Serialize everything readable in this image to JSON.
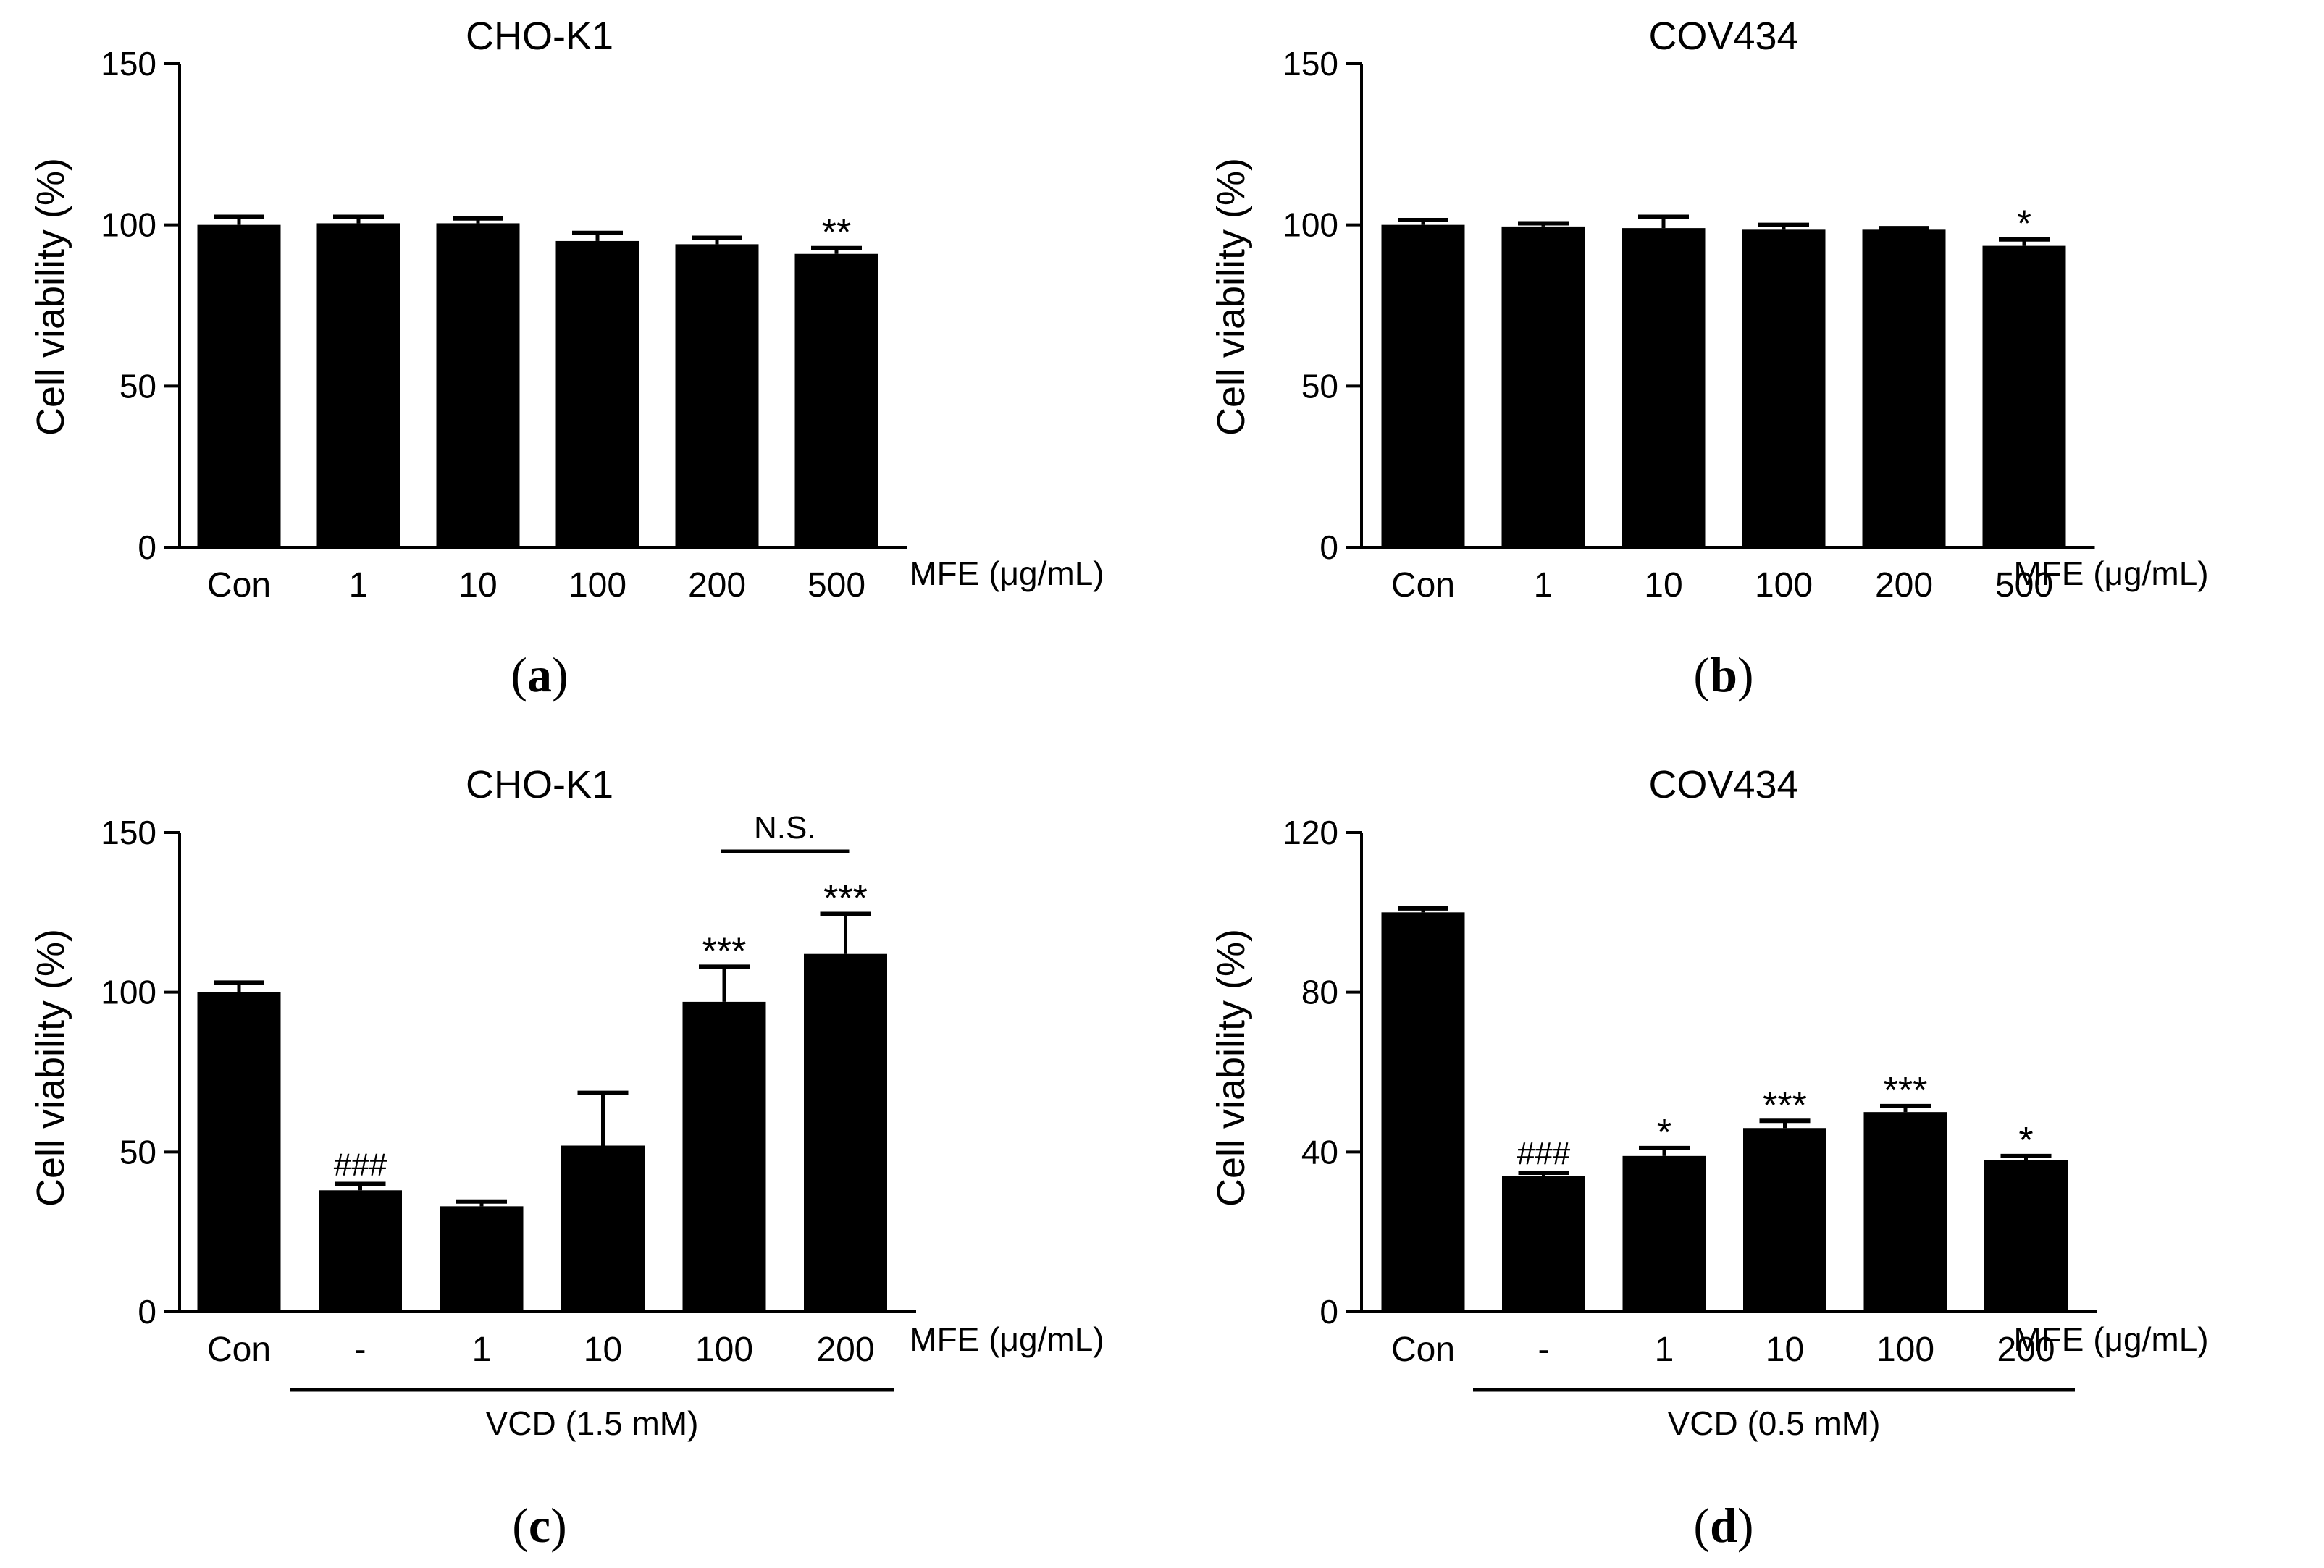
{
  "figure": {
    "panels": [
      {
        "id": "a",
        "caption": "(a)"
      },
      {
        "id": "b",
        "caption": "(b)"
      },
      {
        "id": "c",
        "caption": "(c)"
      },
      {
        "id": "d",
        "caption": "(d)"
      }
    ]
  },
  "chart_data": [
    {
      "id": "a",
      "type": "bar",
      "title": "CHO-K1",
      "ylabel": "Cell viability (%)",
      "xlabel": "MFE (μg/mL)",
      "caption": "(a)",
      "ylim": [
        0,
        150
      ],
      "yticks": [
        0,
        50,
        100,
        150
      ],
      "categories": [
        "Con",
        "1",
        "10",
        "100",
        "200",
        "500"
      ],
      "values": [
        100,
        100.5,
        100.5,
        95,
        94,
        91
      ],
      "errors": [
        2.5,
        2,
        1.5,
        2.5,
        2,
        1.8
      ],
      "annotations": [
        "",
        "",
        "",
        "",
        "",
        "**"
      ]
    },
    {
      "id": "b",
      "type": "bar",
      "title": "COV434",
      "ylabel": "Cell viability (%)",
      "xlabel": "MFE (μg/mL)",
      "caption": "(b)",
      "ylim": [
        0,
        150
      ],
      "yticks": [
        0,
        50,
        100,
        150
      ],
      "categories": [
        "Con",
        "1",
        "10",
        "100",
        "200",
        "500"
      ],
      "values": [
        100,
        99.5,
        99,
        98.5,
        98.5,
        93.5
      ],
      "errors": [
        1.5,
        1,
        3.5,
        1.5,
        0.5,
        2
      ],
      "annotations": [
        "",
        "",
        "",
        "",
        "",
        "*"
      ]
    },
    {
      "id": "c",
      "type": "bar",
      "title": "CHO-K1",
      "ylabel": "Cell viability (%)",
      "xlabel": "MFE (μg/mL)",
      "caption": "(c)",
      "ylim": [
        0,
        150
      ],
      "yticks": [
        0,
        50,
        100,
        150
      ],
      "categories": [
        "Con",
        "-",
        "1",
        "10",
        "100",
        "200"
      ],
      "values": [
        100,
        38,
        33,
        52,
        97,
        112
      ],
      "errors": [
        3,
        2,
        1.5,
        16.5,
        11,
        12.5
      ],
      "annotations": [
        "",
        "###",
        "",
        "",
        "***",
        "***"
      ],
      "group_label": "VCD (1.5 mM)",
      "group_range": [
        1,
        5
      ],
      "comparison": {
        "label": "N.S.",
        "from": 4,
        "to": 5
      }
    },
    {
      "id": "d",
      "type": "bar",
      "title": "COV434",
      "ylabel": "Cell viability (%)",
      "xlabel": "MFE (μg/mL)",
      "caption": "(d)",
      "ylim": [
        0,
        120
      ],
      "yticks": [
        0,
        40,
        80,
        120
      ],
      "categories": [
        "Con",
        "-",
        "1",
        "10",
        "100",
        "200"
      ],
      "values": [
        100,
        34,
        39,
        46,
        50,
        38
      ],
      "errors": [
        1,
        0.8,
        2,
        1.8,
        1.5,
        1
      ],
      "annotations": [
        "",
        "###",
        "*",
        "***",
        "***",
        "*"
      ],
      "group_label": "VCD (0.5 mM)",
      "group_range": [
        1,
        5
      ]
    }
  ]
}
